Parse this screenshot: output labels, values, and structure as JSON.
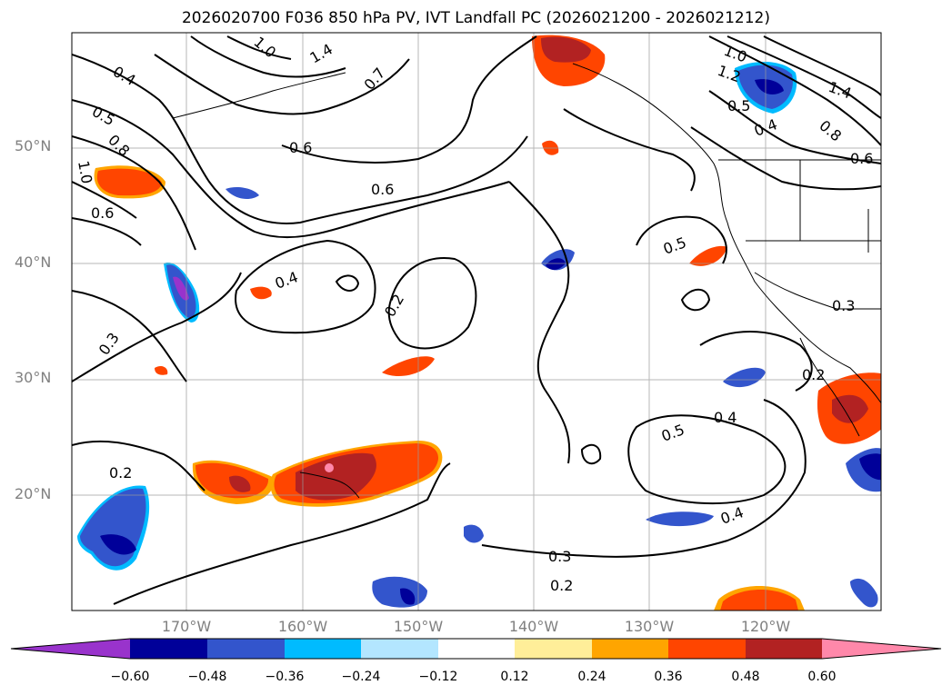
{
  "title": "2026020700 F036 850 hPa PV, IVT Landfall PC (2026021200 - 2026021212)",
  "map": {
    "extent": {
      "lon_min": -180,
      "lon_max": -110,
      "lat_min": 10,
      "lat_max": 60
    },
    "lat_ticks": [
      {
        "label": "50°N",
        "value": 50
      },
      {
        "label": "40°N",
        "value": 40
      },
      {
        "label": "30°N",
        "value": 30
      },
      {
        "label": "20°N",
        "value": 20
      }
    ],
    "lon_ticks": [
      {
        "label": "170°W",
        "value": -170
      },
      {
        "label": "160°W",
        "value": -160
      },
      {
        "label": "150°W",
        "value": -150
      },
      {
        "label": "140°W",
        "value": -140
      },
      {
        "label": "130°W",
        "value": -130
      },
      {
        "label": "120°W",
        "value": -120
      }
    ],
    "contour_labels": [
      "0.4",
      "0.5",
      "0.6",
      "0.8",
      "1.0",
      "0.6",
      "1.0",
      "1.4",
      "0.7",
      "0.6",
      "0.4",
      "0.4",
      "0.2",
      "0.3",
      "0.2",
      "0.5",
      "0.5",
      "0.4",
      "0.3",
      "0.2",
      "1.0",
      "1.2",
      "1.4",
      "0.8",
      "0.5",
      "0.4",
      "0.6",
      "0.3",
      "0.2"
    ]
  },
  "colorbar": {
    "ticks": [
      "−0.60",
      "−0.48",
      "−0.36",
      "−0.24",
      "−0.12",
      "0.12",
      "0.24",
      "0.36",
      "0.48",
      "0.60"
    ],
    "colors": [
      "#9933cc",
      "#000099",
      "#3355cc",
      "#00bbff",
      "#b3e6ff",
      "#ffffff",
      "#ffee99",
      "#ffa500",
      "#ff4500",
      "#b22222",
      "#ff88aa"
    ]
  }
}
